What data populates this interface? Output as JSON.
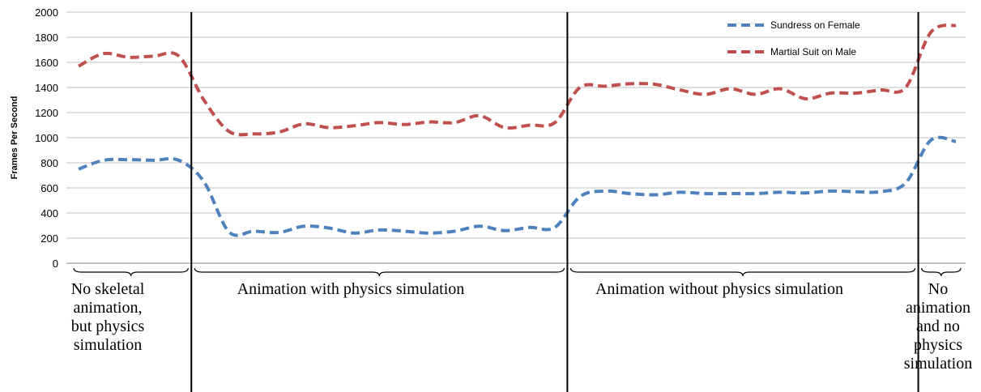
{
  "chart_data": {
    "type": "line",
    "ylabel": "Frames Per Second",
    "ylim": [
      0,
      2000
    ],
    "y_ticks": [
      0,
      200,
      400,
      600,
      800,
      1000,
      1200,
      1400,
      1600,
      1800,
      2000
    ],
    "grid": "horizontal",
    "legend_position": "top-right",
    "series": [
      {
        "name": "Sundress on Female",
        "color": "#4f81bd",
        "line_style": "dashed",
        "values": [
          750,
          820,
          825,
          820,
          820,
          650,
          250,
          255,
          245,
          295,
          280,
          240,
          265,
          255,
          240,
          255,
          295,
          260,
          285,
          285,
          530,
          575,
          555,
          545,
          565,
          555,
          555,
          555,
          565,
          560,
          575,
          570,
          570,
          640,
          980,
          970
        ]
      },
      {
        "name": "Martial Suit on Male",
        "color": "#c0504d",
        "line_style": "dashed",
        "values": [
          1570,
          1670,
          1640,
          1650,
          1650,
          1300,
          1050,
          1030,
          1045,
          1110,
          1080,
          1095,
          1120,
          1105,
          1125,
          1120,
          1175,
          1080,
          1100,
          1120,
          1400,
          1410,
          1430,
          1425,
          1380,
          1345,
          1390,
          1345,
          1390,
          1310,
          1355,
          1355,
          1380,
          1400,
          1840,
          1895
        ]
      }
    ],
    "phase_boundaries_after_point": [
      4,
      19,
      33
    ],
    "phases": [
      "No skeletal animation, but physics simulation",
      "Animation with physics simulation",
      "Animation without physics simulation",
      "No animation and no physics simulation"
    ]
  },
  "phase_labels": {
    "p1": [
      "No skeletal",
      "animation,",
      "but physics",
      "simulation"
    ],
    "p2": [
      "Animation with physics simulation"
    ],
    "p3": [
      "Animation without physics simulation"
    ],
    "p4": [
      "No",
      "animation",
      "and no",
      "physics",
      "simulation"
    ]
  }
}
